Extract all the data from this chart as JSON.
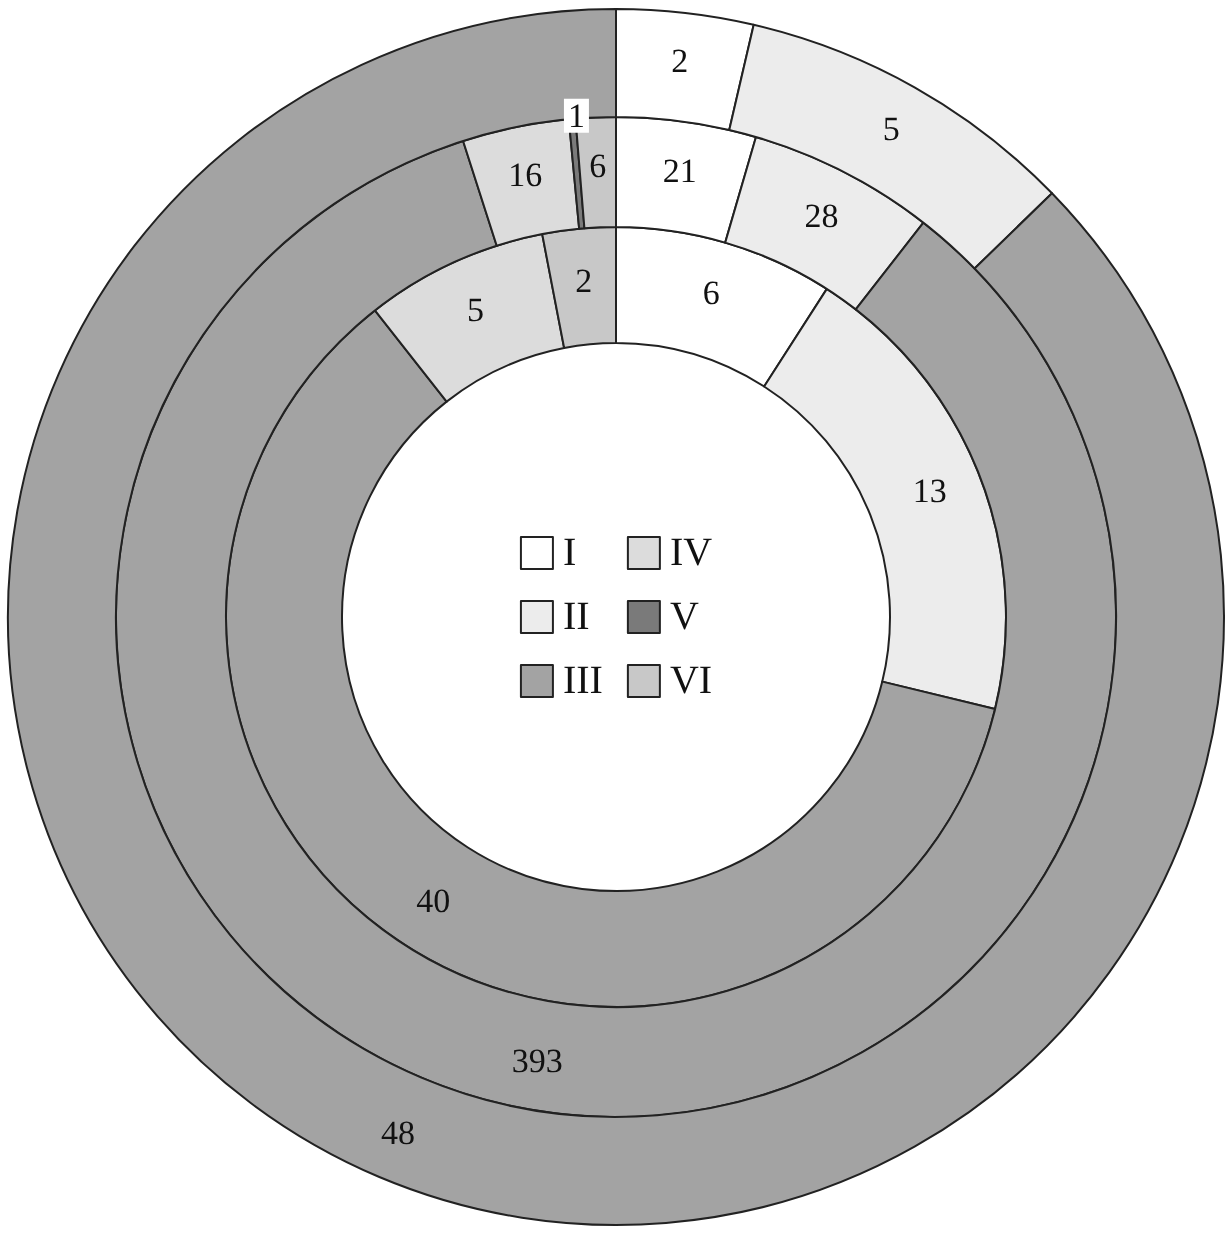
{
  "chart_data": {
    "type": "donut",
    "categories": [
      "I",
      "II",
      "III",
      "IV",
      "V",
      "VI"
    ],
    "colors": [
      "#ffffff",
      "#ececec",
      "#a3a3a3",
      "#dcdcdc",
      "#7a7a7a",
      "#c8c8c8"
    ],
    "series": [
      {
        "values": [
          6,
          13,
          40,
          5,
          null,
          2
        ]
      },
      {
        "values": [
          21,
          28,
          393,
          16,
          1,
          6
        ]
      },
      {
        "values": [
          2,
          5,
          48,
          null,
          null,
          null
        ]
      }
    ],
    "data_labels": true,
    "legend": "center"
  }
}
